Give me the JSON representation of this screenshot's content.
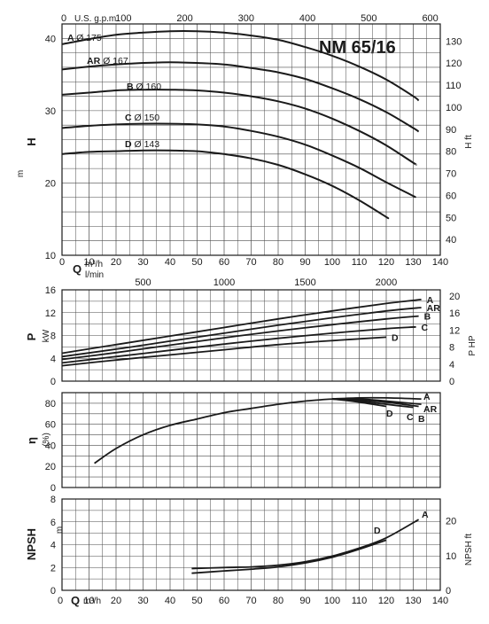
{
  "title": "NM 65/16",
  "colors": {
    "curve": "#1a1a1a",
    "grid": "#4a4a4a",
    "frame": "#1a1a1a"
  },
  "top_axis": {
    "label": "U.S. g.p.m.",
    "ticks": [
      {
        "label": "0",
        "q": 0
      },
      {
        "label": "100",
        "q": 22.71
      },
      {
        "label": "200",
        "q": 45.42
      },
      {
        "label": "300",
        "q": 68.14
      },
      {
        "label": "400",
        "q": 90.85
      },
      {
        "label": "500",
        "q": 113.56
      },
      {
        "label": "600",
        "q": 136.27
      }
    ]
  },
  "q_axis": {
    "label": "Q",
    "unit_m3h": "m³/h",
    "unit_lmin": "l/min",
    "ticks": [
      "0",
      "10",
      "20",
      "30",
      "40",
      "50",
      "60",
      "70",
      "80",
      "90",
      "100",
      "110",
      "120",
      "130",
      "140"
    ],
    "lmin_ticks": [
      {
        "label": "0",
        "q": 0
      },
      {
        "label": "500",
        "q": 30
      },
      {
        "label": "1000",
        "q": 60
      },
      {
        "label": "1500",
        "q": 90
      },
      {
        "label": "2000",
        "q": 120
      }
    ]
  },
  "chart_data": [
    {
      "type": "line",
      "name": "head",
      "ylabel": "H",
      "yunit": "m",
      "yticks": [
        "10",
        "20",
        "30",
        "40"
      ],
      "ylim": [
        10,
        42
      ],
      "right_axis": {
        "label": "H ft",
        "ticks": [
          "40",
          "50",
          "60",
          "70",
          "80",
          "90",
          "100",
          "110",
          "120",
          "130"
        ]
      },
      "x": [
        0,
        10,
        20,
        30,
        40,
        50,
        60,
        70,
        80,
        90,
        100,
        110,
        120,
        130
      ],
      "series": [
        {
          "name": "A Ø 175",
          "label_letter": "A",
          "label_dia": "Ø 175",
          "x": [
            0,
            10,
            20,
            30,
            40,
            50,
            60,
            70,
            80,
            90,
            100,
            110,
            120,
            130
          ],
          "values": [
            39.2,
            39.9,
            40.5,
            40.8,
            41.0,
            41.0,
            40.8,
            40.4,
            39.8,
            38.8,
            37.6,
            36.1,
            34.3,
            32.0
          ],
          "end": [
            132,
            31.4
          ]
        },
        {
          "name": "AR Ø 167",
          "label_letter": "AR",
          "label_dia": "Ø 167",
          "x": [
            0,
            10,
            20,
            30,
            40,
            50,
            60,
            70,
            80,
            90,
            100,
            110,
            120,
            130
          ],
          "values": [
            35.7,
            36.1,
            36.4,
            36.6,
            36.7,
            36.6,
            36.4,
            35.9,
            35.3,
            34.4,
            33.1,
            31.6,
            29.8,
            27.6
          ],
          "end": [
            132,
            27.1
          ]
        },
        {
          "name": "B Ø 160",
          "label_letter": "B",
          "label_dia": "Ø 160",
          "x": [
            0,
            10,
            20,
            30,
            40,
            50,
            60,
            70,
            80,
            90,
            100,
            110,
            120,
            130
          ],
          "values": [
            32.2,
            32.5,
            32.8,
            32.9,
            32.9,
            32.8,
            32.5,
            32.0,
            31.3,
            30.3,
            28.9,
            27.2,
            25.2,
            22.8
          ],
          "end": [
            131,
            22.6
          ]
        },
        {
          "name": "C Ø 150",
          "label_letter": "C",
          "label_dia": "Ø 150",
          "x": [
            0,
            10,
            20,
            30,
            40,
            50,
            60,
            70,
            80,
            90,
            100,
            110,
            120,
            130
          ],
          "values": [
            27.6,
            27.9,
            28.1,
            28.2,
            28.2,
            28.1,
            27.8,
            27.2,
            26.4,
            25.3,
            23.8,
            22.1,
            20.1,
            18.2
          ],
          "end": [
            130,
            18.2
          ]
        },
        {
          "name": "D Ø 143",
          "label_letter": "D",
          "label_dia": "Ø 143",
          "x": [
            0,
            10,
            20,
            30,
            40,
            50,
            60,
            70,
            80,
            90,
            100,
            110,
            120
          ],
          "values": [
            24.0,
            24.3,
            24.4,
            24.5,
            24.5,
            24.4,
            24.0,
            23.4,
            22.5,
            21.2,
            19.6,
            17.6,
            15.3
          ],
          "end": [
            120,
            15.3
          ]
        }
      ]
    },
    {
      "type": "line",
      "name": "power",
      "ylabel": "P",
      "yunit": "kW",
      "yticks": [
        "0",
        "4",
        "8",
        "12",
        "16"
      ],
      "ylim": [
        0,
        16
      ],
      "right_axis": {
        "label": "P HP",
        "ticks": [
          "0",
          "4",
          "8",
          "12",
          "16",
          "20"
        ]
      },
      "series": [
        {
          "name": "A",
          "x": [
            0,
            20,
            40,
            60,
            80,
            100,
            120,
            133
          ],
          "values": [
            4.9,
            6.4,
            7.9,
            9.4,
            10.9,
            12.3,
            13.6,
            14.3
          ]
        },
        {
          "name": "AR",
          "x": [
            0,
            20,
            40,
            60,
            80,
            100,
            120,
            133
          ],
          "values": [
            4.3,
            5.6,
            7.0,
            8.4,
            9.8,
            11.1,
            12.3,
            12.9
          ]
        },
        {
          "name": "B",
          "x": [
            0,
            20,
            40,
            60,
            80,
            100,
            120,
            132
          ],
          "values": [
            3.8,
            5.0,
            6.3,
            7.6,
            8.8,
            9.9,
            10.9,
            11.4
          ]
        },
        {
          "name": "C",
          "x": [
            0,
            20,
            40,
            60,
            80,
            100,
            120,
            131
          ],
          "values": [
            3.2,
            4.3,
            5.4,
            6.5,
            7.5,
            8.4,
            9.2,
            9.5
          ]
        },
        {
          "name": "D",
          "x": [
            0,
            20,
            40,
            60,
            80,
            100,
            120
          ],
          "values": [
            2.7,
            3.7,
            4.6,
            5.5,
            6.4,
            7.1,
            7.7
          ]
        }
      ]
    },
    {
      "type": "line",
      "name": "efficiency",
      "ylabel": "η",
      "yunit": "(%)",
      "yticks": [
        "0",
        "20",
        "40",
        "60",
        "80"
      ],
      "ylim": [
        0,
        90
      ],
      "series": [
        {
          "name": "common",
          "x": [
            12,
            20,
            30,
            40,
            50,
            60,
            70,
            80,
            90,
            100
          ],
          "values": [
            23,
            37,
            50,
            59,
            65,
            71,
            75,
            79,
            82,
            84
          ]
        },
        {
          "name": "A",
          "x": [
            100,
            110,
            120,
            133
          ],
          "values": [
            84,
            85,
            85,
            84
          ]
        },
        {
          "name": "AR",
          "x": [
            100,
            110,
            120,
            133
          ],
          "values": [
            84,
            84,
            82,
            79
          ]
        },
        {
          "name": "B",
          "x": [
            100,
            110,
            120,
            132
          ],
          "values": [
            84,
            83,
            81,
            77
          ]
        },
        {
          "name": "C",
          "x": [
            100,
            110,
            120,
            130
          ],
          "values": [
            84,
            82,
            79,
            76
          ]
        },
        {
          "name": "D",
          "x": [
            100,
            110,
            120
          ],
          "values": [
            84,
            81,
            77
          ]
        }
      ],
      "labels": [
        "A",
        "AR",
        "B",
        "C",
        "D"
      ]
    },
    {
      "type": "line",
      "name": "npsh",
      "ylabel": "NPSH",
      "yunit": "m",
      "yticks": [
        "0",
        "2",
        "4",
        "6",
        "8"
      ],
      "ylim": [
        0,
        8
      ],
      "right_axis": {
        "label": "NPSH ft",
        "ticks": [
          "0",
          "10",
          "20"
        ]
      },
      "series": [
        {
          "name": "A",
          "x": [
            48,
            60,
            70,
            80,
            90,
            100,
            110,
            120,
            132
          ],
          "values": [
            1.9,
            2.0,
            2.05,
            2.2,
            2.5,
            3.0,
            3.7,
            4.6,
            6.2
          ]
        },
        {
          "name": "D",
          "x": [
            48,
            60,
            70,
            80,
            90,
            100,
            110,
            120
          ],
          "values": [
            1.5,
            1.7,
            1.85,
            2.05,
            2.4,
            2.9,
            3.6,
            4.4
          ]
        }
      ],
      "labels": [
        "A",
        "D"
      ]
    }
  ]
}
